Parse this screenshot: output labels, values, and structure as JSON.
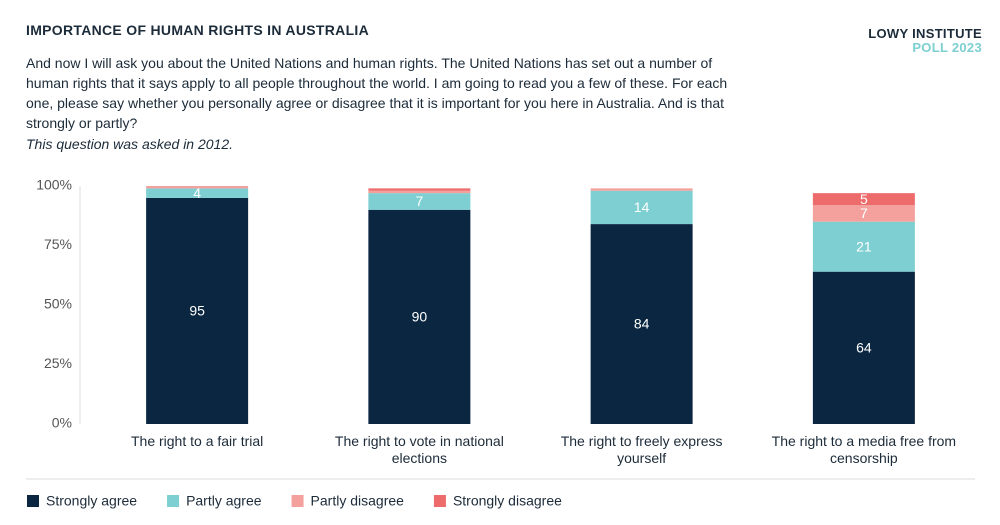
{
  "chart_data": {
    "type": "stacked_bar",
    "title": "IMPORTANCE OF HUMAN RIGHTS IN AUSTRALIA",
    "subtitle": "And now I will ask you about the United Nations and human rights. The United Nations has set out a number of human rights that it says apply to all people throughout the world. I am going to read you a few of these. For each one, please say whether you personally agree or disagree that it is important for you here in Australia. And is that strongly or partly?",
    "note": "This question was asked in 2012.",
    "brand": "LOWY INSTITUTE",
    "brand_sub": "POLL 2023",
    "categories": [
      "The right to a fair trial",
      "The right to vote in national elections",
      "The right to freely express yourself",
      "The right to a media free from censorship"
    ],
    "series": [
      {
        "name": "Strongly agree",
        "color": "#0b2640",
        "values": [
          95,
          90,
          84,
          64
        ]
      },
      {
        "name": "Partly agree",
        "color": "#7dcfd1",
        "values": [
          4,
          7,
          14,
          21
        ]
      },
      {
        "name": "Partly disagree",
        "color": "#f4a09c",
        "values": [
          1,
          1,
          1,
          7
        ]
      },
      {
        "name": "Strongly disagree",
        "color": "#ee6b6b",
        "values": [
          0,
          1,
          0,
          5
        ]
      }
    ],
    "ylim": [
      0,
      100
    ],
    "yticks": [
      {
        "value": 0,
        "label": "0%"
      },
      {
        "value": 25,
        "label": "25%"
      },
      {
        "value": 50,
        "label": "50%"
      },
      {
        "value": 75,
        "label": "75%"
      },
      {
        "value": 100,
        "label": "100%"
      }
    ]
  }
}
